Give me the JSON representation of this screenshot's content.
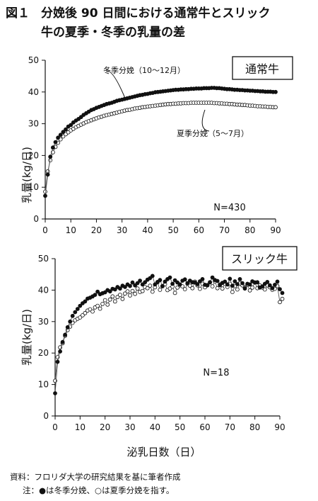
{
  "title": {
    "figure_number": "図１",
    "line1": "分娩後 90 日間における通常牛とスリック",
    "line2": "牛の夏季・冬季の乳量の差"
  },
  "x_axis_title": "泌乳日数（日）",
  "notes": {
    "source": "資料：フロリダ大学の研究結果を基に筆者作成",
    "note": "注：●は冬季分娩、○は夏季分娩を指す。"
  },
  "colors": {
    "winter_marker": "#111111",
    "summer_marker": "#ffffff",
    "line": "#555555"
  },
  "chart_data": [
    {
      "type": "line",
      "panel_label": "通常牛",
      "n_label": "N=430",
      "ylabel": "乳量(kg/日)",
      "xlim": [
        0,
        90
      ],
      "ylim": [
        0,
        50
      ],
      "xticks": [
        0,
        10,
        20,
        30,
        40,
        50,
        60,
        70,
        80,
        90
      ],
      "yticks": [
        0,
        10,
        20,
        30,
        40,
        50
      ],
      "x_start": 0,
      "series": [
        {
          "name": "冬季分娩（10～12月）",
          "marker": "filled",
          "values": [
            7.3,
            14,
            19.6,
            22.5,
            24.2,
            25.6,
            26.5,
            27.4,
            28.2,
            29.1,
            29.6,
            30.4,
            31,
            31.5,
            32.1,
            32.8,
            33.3,
            33.8,
            34.3,
            34.6,
            35,
            35.3,
            35.6,
            35.9,
            36.2,
            36.4,
            36.6,
            36.9,
            37.2,
            37.4,
            37.6,
            37.8,
            38,
            38.2,
            38.4,
            38.6,
            38.8,
            39,
            39.1,
            39.3,
            39.4,
            39.6,
            39.7,
            39.9,
            40,
            40.1,
            40.2,
            40.3,
            40.4,
            40.5,
            40.6,
            40.7,
            40.7,
            40.8,
            40.8,
            40.9,
            40.9,
            41,
            41,
            41.1,
            41.1,
            41.1,
            41.2,
            41.2,
            41.2,
            41.3,
            41.3,
            41.2,
            41.2,
            41.1,
            41,
            40.9,
            40.9,
            40.8,
            40.7,
            40.7,
            40.6,
            40.6,
            40.5,
            40.5,
            40.4,
            40.4,
            40.3,
            40.3,
            40.2,
            40.2,
            40.1,
            40.1,
            40.1,
            40,
            40
          ]
        },
        {
          "name": "夏季分娩（5～7月）",
          "marker": "open",
          "values": [
            8.6,
            15,
            18.5,
            21,
            22.7,
            24,
            25.1,
            26,
            26.7,
            27.3,
            27.9,
            28.4,
            28.9,
            29.3,
            29.7,
            30.1,
            30.5,
            30.8,
            31.1,
            31.4,
            31.7,
            32,
            32.2,
            32.5,
            32.7,
            32.9,
            33.1,
            33.3,
            33.5,
            33.7,
            33.9,
            34.1,
            34.3,
            34.4,
            34.6,
            34.8,
            34.9,
            35,
            35.2,
            35.3,
            35.4,
            35.5,
            35.6,
            35.7,
            35.8,
            35.9,
            36,
            36.1,
            36.2,
            36.2,
            36.3,
            36.3,
            36.4,
            36.4,
            36.5,
            36.5,
            36.5,
            36.6,
            36.6,
            36.6,
            36.6,
            36.6,
            36.6,
            36.6,
            36.6,
            36.6,
            36.5,
            36.5,
            36.4,
            36.4,
            36.3,
            36.3,
            36.2,
            36.2,
            36.1,
            36,
            36,
            35.9,
            35.9,
            35.8,
            35.7,
            35.7,
            35.6,
            35.5,
            35.5,
            35.4,
            35.4,
            35.3,
            35.3,
            35.2,
            35.2
          ]
        }
      ]
    },
    {
      "type": "line",
      "panel_label": "スリック牛",
      "n_label": "N=18",
      "ylabel": "乳量(kg/日)",
      "xlim": [
        0,
        90
      ],
      "ylim": [
        0,
        50
      ],
      "xticks": [
        0,
        10,
        20,
        30,
        40,
        50,
        60,
        70,
        80,
        90
      ],
      "yticks": [
        0,
        10,
        20,
        30,
        40,
        50
      ],
      "x_start": 0,
      "series": [
        {
          "name": "冬季分娩",
          "marker": "filled",
          "values": [
            7.2,
            17.2,
            20.5,
            23.5,
            25.8,
            28.2,
            30,
            31.8,
            33,
            34,
            35,
            35.8,
            36.4,
            37.3,
            37.6,
            38,
            38.5,
            39.5,
            38.7,
            39,
            39.3,
            40,
            39.6,
            40.4,
            40.2,
            41,
            40.5,
            41.4,
            41,
            41.8,
            41.3,
            42.4,
            41.5,
            42.2,
            43,
            41.8,
            42.5,
            43.3,
            43.8,
            44.5,
            41.8,
            42.6,
            43.2,
            41.3,
            42.7,
            43.5,
            44,
            42,
            43.1,
            42.4,
            41.8,
            43,
            43.4,
            42.2,
            43,
            42.5,
            42.4,
            41.9,
            42.8,
            43.5,
            41.7,
            41.6,
            42.5,
            44,
            43.2,
            42.9,
            41.6,
            42.3,
            42.7,
            41.8,
            43.6,
            41.4,
            42.8,
            41.9,
            43.5,
            42.2,
            40.5,
            42,
            41.8,
            42.8,
            42.4,
            42.5,
            40.8,
            41.2,
            42,
            42.6,
            41.5,
            40.6,
            41.7,
            42.7,
            40.3,
            39.1
          ]
        },
        {
          "name": "夏季分娩",
          "marker": "open",
          "values": [
            11.2,
            18.7,
            21.8,
            23.1,
            25.5,
            27.3,
            28.4,
            29.6,
            30.4,
            30.9,
            31.3,
            32,
            32.7,
            33.5,
            33.9,
            33.2,
            34.5,
            35,
            34.1,
            35.6,
            36.8,
            35.4,
            37,
            38,
            36.4,
            37.8,
            38.5,
            37.2,
            38.9,
            39.6,
            38.3,
            39.7,
            38.8,
            40.5,
            39.4,
            39.7,
            41,
            40.6,
            41.4,
            39.5,
            40.9,
            42.5,
            40.1,
            41.2,
            41.9,
            40,
            40.5,
            41.1,
            39.1,
            40.8,
            41.5,
            41.2,
            40.3,
            42,
            41.4,
            40.6,
            42.7,
            41.5,
            40.4,
            42,
            40.9,
            41.5,
            42.5,
            41.2,
            42.8,
            40.6,
            41.8,
            40.5,
            42,
            41,
            42,
            39.4,
            41.3,
            40.2,
            42.1,
            41.5,
            40.8,
            41.7,
            39.9,
            40.8,
            42.4,
            40.6,
            41.5,
            40.8,
            40.2,
            41.5,
            40.9,
            40.1,
            40.4,
            41.3,
            36.2,
            37.2
          ]
        }
      ]
    }
  ]
}
